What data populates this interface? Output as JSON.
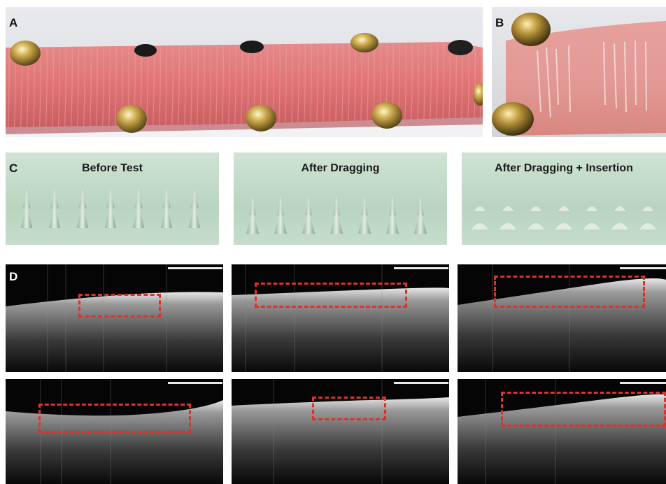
{
  "figure": {
    "panel_labels": [
      "A",
      "B",
      "C",
      "D"
    ],
    "panel_c_titles": [
      "Before Test",
      "After Dragging",
      "After Dragging + Insertion"
    ]
  }
}
